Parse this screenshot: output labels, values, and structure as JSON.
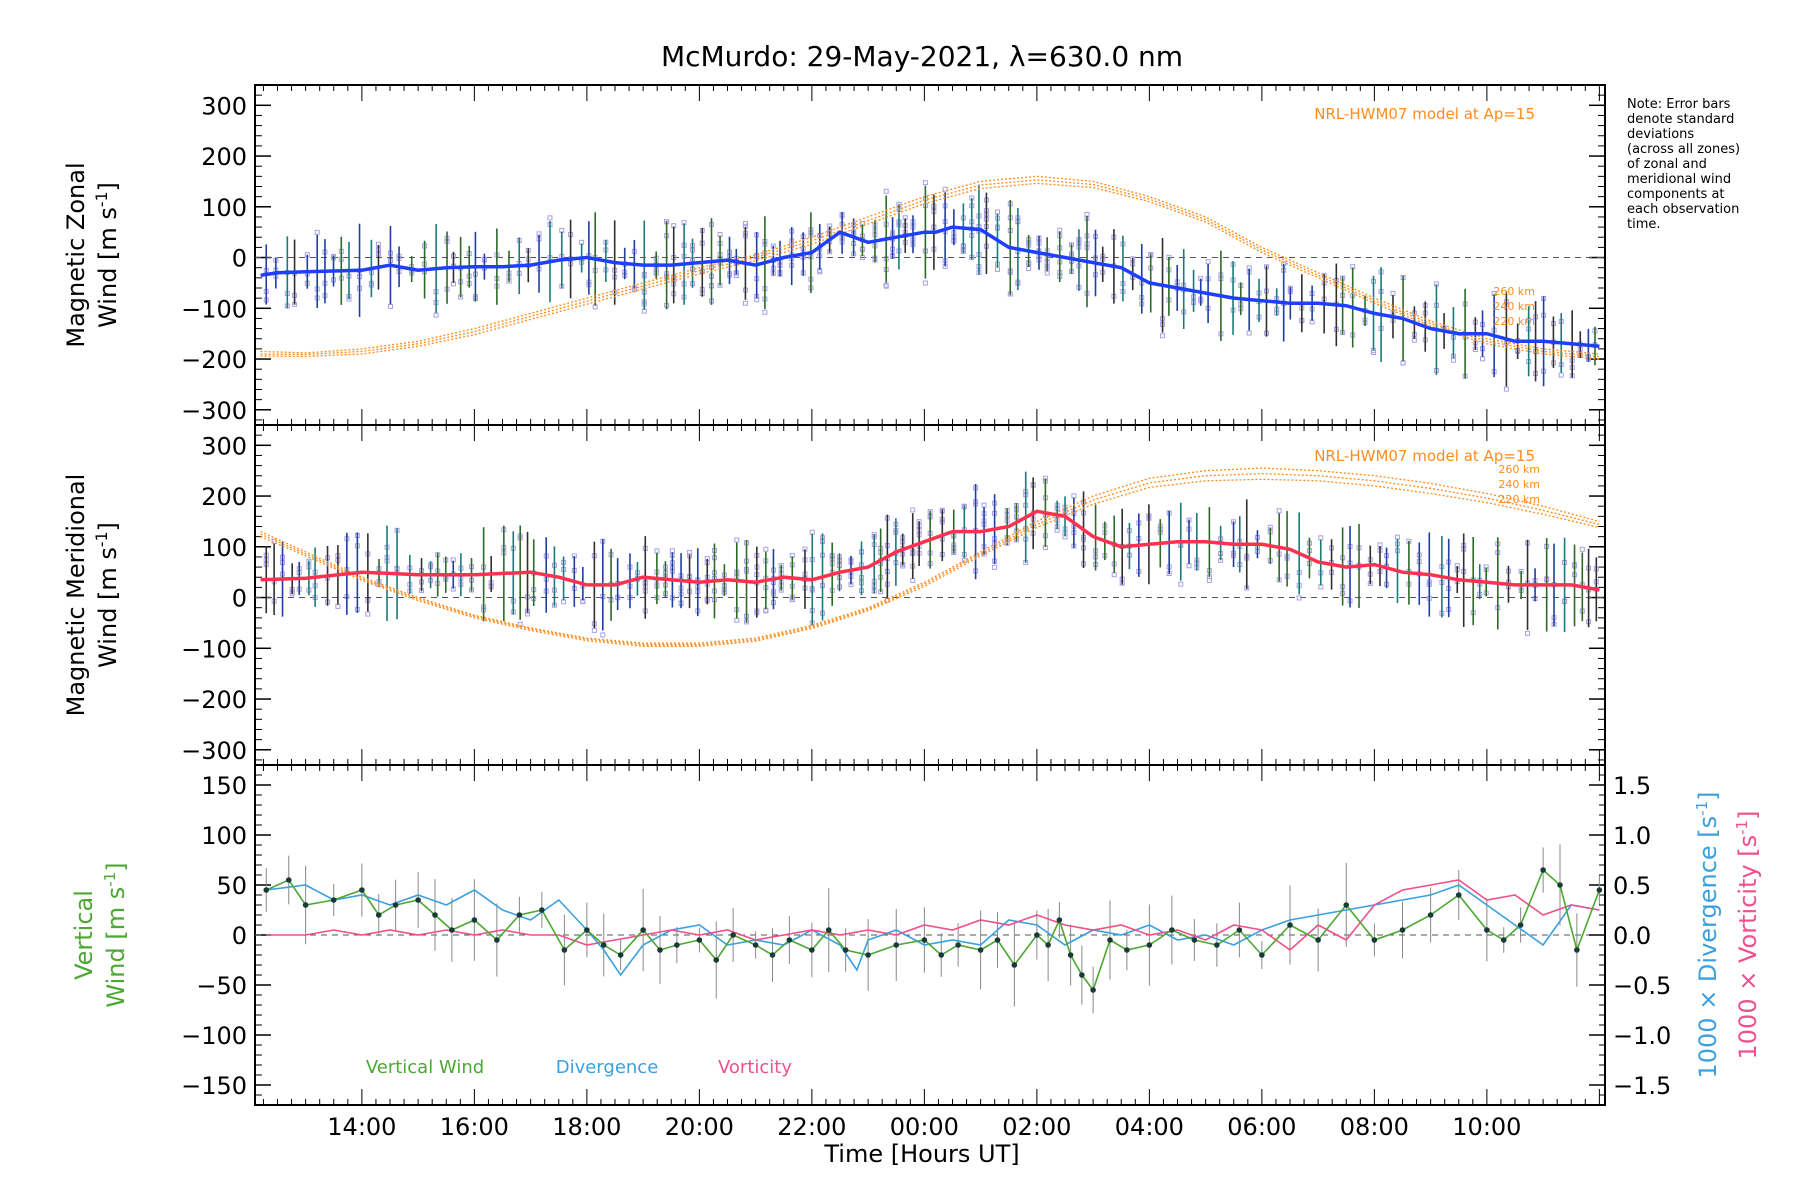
{
  "title": "McMurdo: 29-May-2021, λ=630.0 nm",
  "note": {
    "lines": [
      "Note: Error bars",
      "denote standard",
      "deviations",
      "(across all zones)",
      "of zonal and",
      "meridional wind",
      "components at",
      "each observation",
      "time."
    ]
  },
  "colors": {
    "zonal_line": "#1f3fff",
    "meridional_line": "#ff3050",
    "model": "#ff8c1a",
    "scatter": "#a9a0e6",
    "vertical": "#4ca832",
    "divergence": "#3aa0e0",
    "vorticity": "#f0508c",
    "errorbar": "#404a40"
  },
  "xaxis": {
    "label": "Time [Hours UT]",
    "ticks": [
      {
        "t": 14,
        "label": "14:00"
      },
      {
        "t": 16,
        "label": "16:00"
      },
      {
        "t": 18,
        "label": "18:00"
      },
      {
        "t": 20,
        "label": "20:00"
      },
      {
        "t": 22,
        "label": "22:00"
      },
      {
        "t": 24,
        "label": "00:00"
      },
      {
        "t": 26,
        "label": "02:00"
      },
      {
        "t": 28,
        "label": "04:00"
      },
      {
        "t": 30,
        "label": "06:00"
      },
      {
        "t": 32,
        "label": "08:00"
      },
      {
        "t": 34,
        "label": "10:00"
      }
    ],
    "range": [
      12.1,
      36.1
    ]
  },
  "chart_data": [
    {
      "type": "line",
      "panel": "zonal",
      "ylabel": [
        "Magnetic Zonal",
        "Wind [m s",
        "-1",
        "]"
      ],
      "ylim": [
        -330,
        340
      ],
      "yticks": [
        -300,
        -200,
        -100,
        0,
        100,
        200,
        300
      ],
      "ytick_labels": [
        "−300",
        "−200",
        "−100",
        "0",
        "100",
        "200",
        "300"
      ],
      "model_label": "NRL-HWM07 model at Ap=15",
      "model_alt_labels": [
        "260 km",
        "240 km",
        "220 km"
      ],
      "series": [
        {
          "name": "Zonal wind",
          "x": [
            12.2,
            12.5,
            13,
            14,
            14.5,
            15,
            15.5,
            16,
            16.5,
            17,
            17.5,
            18,
            18.5,
            19,
            19.5,
            20,
            20.5,
            21,
            21.5,
            22,
            22.5,
            23,
            23.5,
            24,
            24.2,
            24.5,
            25,
            25.5,
            26,
            26.5,
            27,
            27.5,
            28,
            28.5,
            29,
            29.5,
            30,
            30.5,
            31,
            31.5,
            32,
            32.5,
            33,
            33.5,
            34,
            34.5,
            35,
            35.5,
            36
          ],
          "y": [
            -35,
            -30,
            -28,
            -25,
            -15,
            -25,
            -20,
            -18,
            -18,
            -15,
            -5,
            0,
            -10,
            -15,
            -15,
            -10,
            -5,
            -15,
            0,
            10,
            50,
            30,
            40,
            50,
            50,
            60,
            55,
            20,
            10,
            0,
            -10,
            -20,
            -50,
            -60,
            -70,
            -80,
            -85,
            -90,
            -90,
            -95,
            -110,
            -120,
            -140,
            -150,
            -150,
            -165,
            -165,
            -170,
            -175
          ]
        },
        {
          "name": "NRL-HWM07 260 km",
          "x": [
            12.2,
            13,
            14,
            15,
            16,
            17,
            18,
            19,
            20,
            21,
            22,
            23,
            24,
            25,
            26,
            27,
            28,
            29,
            30,
            31,
            32,
            33,
            34,
            35,
            36
          ],
          "y": [
            -185,
            -188,
            -180,
            -165,
            -140,
            -110,
            -80,
            -50,
            -20,
            5,
            40,
            80,
            120,
            150,
            160,
            150,
            120,
            80,
            20,
            -30,
            -80,
            -125,
            -160,
            -180,
            -190
          ]
        },
        {
          "name": "NRL-HWM07 240 km",
          "x": [
            12.2,
            13,
            14,
            15,
            16,
            17,
            18,
            19,
            20,
            21,
            22,
            23,
            24,
            25,
            26,
            27,
            28,
            29,
            30,
            31,
            32,
            33,
            34,
            35,
            36
          ],
          "y": [
            -190,
            -191,
            -185,
            -170,
            -146,
            -116,
            -86,
            -56,
            -26,
            0,
            33,
            73,
            113,
            143,
            153,
            144,
            115,
            75,
            15,
            -35,
            -85,
            -130,
            -165,
            -185,
            -195
          ]
        },
        {
          "name": "NRL-HWM07 220 km",
          "x": [
            12.2,
            13,
            14,
            15,
            16,
            17,
            18,
            19,
            20,
            21,
            22,
            23,
            24,
            25,
            26,
            27,
            28,
            29,
            30,
            31,
            32,
            33,
            34,
            35,
            36
          ],
          "y": [
            -194,
            -195,
            -190,
            -175,
            -152,
            -122,
            -92,
            -62,
            -32,
            -6,
            26,
            66,
            106,
            136,
            146,
            138,
            110,
            70,
            10,
            -40,
            -90,
            -135,
            -170,
            -190,
            -200
          ]
        }
      ]
    },
    {
      "type": "line",
      "panel": "meridional",
      "ylabel": [
        "Magnetic Meridional",
        "Wind [m s",
        "-1",
        "]"
      ],
      "ylim": [
        -330,
        340
      ],
      "yticks": [
        -300,
        -200,
        -100,
        0,
        100,
        200,
        300
      ],
      "ytick_labels": [
        "−300",
        "−200",
        "−100",
        "0",
        "100",
        "200",
        "300"
      ],
      "model_label": "NRL-HWM07 model at Ap=15",
      "model_alt_labels": [
        "260 km",
        "240 km",
        "220 km"
      ],
      "series": [
        {
          "name": "Meridional wind",
          "x": [
            12.2,
            13,
            14,
            15,
            16,
            17,
            17.5,
            18,
            18.5,
            19,
            19.5,
            20,
            20.5,
            21,
            21.5,
            22,
            22.5,
            23,
            23.5,
            24,
            24.5,
            25,
            25.5,
            26,
            26.5,
            27,
            27.5,
            28,
            28.5,
            29,
            29.5,
            30,
            30.5,
            31,
            31.5,
            32,
            32.5,
            33,
            33.5,
            34,
            34.5,
            35,
            35.5,
            36
          ],
          "y": [
            35,
            38,
            50,
            45,
            45,
            50,
            40,
            25,
            25,
            40,
            35,
            30,
            35,
            30,
            40,
            35,
            50,
            60,
            90,
            110,
            130,
            130,
            140,
            170,
            160,
            120,
            100,
            105,
            110,
            110,
            105,
            105,
            95,
            70,
            60,
            65,
            50,
            45,
            35,
            30,
            25,
            25,
            25,
            15
          ]
        },
        {
          "name": "NRL-HWM07 260 km",
          "x": [
            12.2,
            13,
            14,
            15,
            16,
            17,
            18,
            19,
            20,
            21,
            22,
            23,
            24,
            25,
            26,
            27,
            28,
            29,
            30,
            31,
            32,
            33,
            34,
            35,
            36
          ],
          "y": [
            130,
            90,
            40,
            0,
            -35,
            -60,
            -80,
            -90,
            -90,
            -80,
            -55,
            -20,
            30,
            90,
            150,
            200,
            235,
            250,
            255,
            250,
            240,
            225,
            205,
            180,
            150
          ]
        },
        {
          "name": "NRL-HWM07 240 km",
          "x": [
            12.2,
            13,
            14,
            15,
            16,
            17,
            18,
            19,
            20,
            21,
            22,
            23,
            24,
            25,
            26,
            27,
            28,
            29,
            30,
            31,
            32,
            33,
            34,
            35,
            36
          ],
          "y": [
            125,
            86,
            37,
            -3,
            -37,
            -62,
            -82,
            -93,
            -93,
            -83,
            -58,
            -23,
            26,
            86,
            144,
            192,
            226,
            240,
            244,
            240,
            230,
            215,
            196,
            172,
            144
          ]
        },
        {
          "name": "NRL-HWM07 220 km",
          "x": [
            12.2,
            13,
            14,
            15,
            16,
            17,
            18,
            19,
            20,
            21,
            22,
            23,
            24,
            25,
            26,
            27,
            28,
            29,
            30,
            31,
            32,
            33,
            34,
            35,
            36
          ],
          "y": [
            120,
            82,
            34,
            -6,
            -40,
            -65,
            -85,
            -96,
            -96,
            -86,
            -61,
            -26,
            22,
            82,
            138,
            184,
            217,
            230,
            233,
            230,
            220,
            205,
            187,
            164,
            138
          ]
        }
      ]
    },
    {
      "type": "line",
      "panel": "vertical",
      "ylabel_left": [
        "Vertical",
        "Wind [m s",
        "-1",
        "]"
      ],
      "ylabel_right_div": [
        "1000 × Divergence [s",
        "-1",
        "]"
      ],
      "ylabel_right_vort": [
        "1000 × Vorticity [s",
        "-1",
        "]"
      ],
      "ylim": [
        -170,
        170
      ],
      "yticks": [
        -150,
        -100,
        -50,
        0,
        50,
        100,
        150
      ],
      "ytick_labels": [
        "−150",
        "−100",
        "−50",
        "0",
        "50",
        "100",
        "150"
      ],
      "ylim_right": [
        -1.7,
        1.7
      ],
      "yticks_right": [
        -1.5,
        -1.0,
        -0.5,
        0.0,
        0.5,
        1.0,
        1.5
      ],
      "ytick_labels_right": [
        "−1.5",
        "−1.0",
        "−0.5",
        "0.0",
        "0.5",
        "1.0",
        "1.5"
      ],
      "legend": [
        "Vertical Wind",
        "Divergence",
        "Vorticity"
      ],
      "series": [
        {
          "name": "Vertical Wind",
          "x": [
            12.3,
            12.7,
            13,
            13.5,
            14,
            14.3,
            14.6,
            15,
            15.3,
            15.6,
            16,
            16.4,
            16.8,
            17.2,
            17.6,
            18,
            18.3,
            18.6,
            19,
            19.3,
            19.6,
            20,
            20.3,
            20.6,
            21,
            21.3,
            21.6,
            22,
            22.3,
            22.6,
            23,
            23.5,
            24,
            24.3,
            24.6,
            25,
            25.3,
            25.6,
            26,
            26.2,
            26.4,
            26.6,
            26.8,
            27,
            27.3,
            27.6,
            28,
            28.4,
            28.8,
            29.2,
            29.6,
            30,
            30.5,
            31,
            31.5,
            32,
            32.5,
            33,
            33.5,
            34,
            34.3,
            34.6,
            35,
            35.3,
            35.6,
            36
          ],
          "y": [
            45,
            55,
            30,
            35,
            45,
            20,
            30,
            35,
            20,
            5,
            15,
            -5,
            20,
            25,
            -15,
            5,
            -10,
            -20,
            5,
            -15,
            -10,
            -5,
            -25,
            0,
            -10,
            -20,
            -5,
            -15,
            5,
            -15,
            -20,
            -10,
            -5,
            -20,
            -10,
            -15,
            -5,
            -30,
            0,
            -10,
            15,
            -20,
            -40,
            -55,
            -5,
            -15,
            -10,
            5,
            -5,
            -10,
            5,
            -20,
            10,
            -5,
            30,
            -5,
            5,
            20,
            40,
            5,
            -5,
            10,
            65,
            50,
            -15,
            45
          ],
          "axis": "left"
        },
        {
          "name": "Divergence",
          "x": [
            12.3,
            13,
            13.5,
            14,
            14.5,
            15,
            15.5,
            16,
            16.5,
            17,
            17.5,
            18,
            18.3,
            18.6,
            19,
            19.5,
            20,
            20.5,
            21,
            21.5,
            22,
            22.5,
            22.8,
            23,
            23.5,
            24,
            24.5,
            25,
            25.5,
            26,
            26.5,
            27,
            27.5,
            28,
            28.5,
            29,
            29.5,
            30,
            30.5,
            31,
            31.5,
            32,
            32.5,
            33,
            33.5,
            34,
            34.5,
            35,
            35.5,
            36
          ],
          "y": [
            0.45,
            0.5,
            0.35,
            0.4,
            0.3,
            0.4,
            0.3,
            0.45,
            0.25,
            0.15,
            0.35,
            0.05,
            -0.15,
            -0.4,
            -0.1,
            0.05,
            0.1,
            -0.1,
            -0.05,
            -0.1,
            0.05,
            -0.1,
            -0.35,
            -0.05,
            0.05,
            -0.1,
            -0.05,
            -0.1,
            0.15,
            0.1,
            -0.1,
            0.05,
            0.0,
            0.1,
            -0.05,
            0.0,
            -0.1,
            0.05,
            0.15,
            0.2,
            0.25,
            0.3,
            0.35,
            0.4,
            0.5,
            0.3,
            0.1,
            -0.1,
            0.3,
            0.25
          ],
          "axis": "right"
        },
        {
          "name": "Vorticity",
          "x": [
            12.3,
            13,
            13.5,
            14,
            14.5,
            15,
            15.5,
            16,
            16.5,
            17,
            17.5,
            18,
            18.5,
            19,
            19.5,
            20,
            20.5,
            21,
            21.5,
            22,
            22.5,
            23,
            23.5,
            24,
            24.5,
            25,
            25.5,
            26,
            26.5,
            27,
            27.5,
            28,
            28.5,
            29,
            29.5,
            30,
            30.5,
            31,
            31.5,
            32,
            32.5,
            33,
            33.5,
            34,
            34.5,
            35,
            35.5,
            36
          ],
          "y": [
            0.0,
            0.0,
            0.05,
            0.0,
            0.05,
            0.0,
            0.05,
            0.0,
            0.05,
            0.0,
            0.0,
            -0.1,
            -0.05,
            0.0,
            0.05,
            0.0,
            0.05,
            -0.05,
            0.0,
            0.05,
            0.0,
            0.05,
            0.0,
            0.1,
            0.05,
            0.15,
            0.1,
            0.2,
            0.1,
            0.05,
            0.1,
            0.0,
            0.05,
            -0.05,
            0.1,
            0.05,
            -0.15,
            0.1,
            -0.05,
            0.3,
            0.45,
            0.5,
            0.55,
            0.35,
            0.4,
            0.2,
            0.3,
            0.25
          ],
          "axis": "right"
        }
      ]
    }
  ]
}
